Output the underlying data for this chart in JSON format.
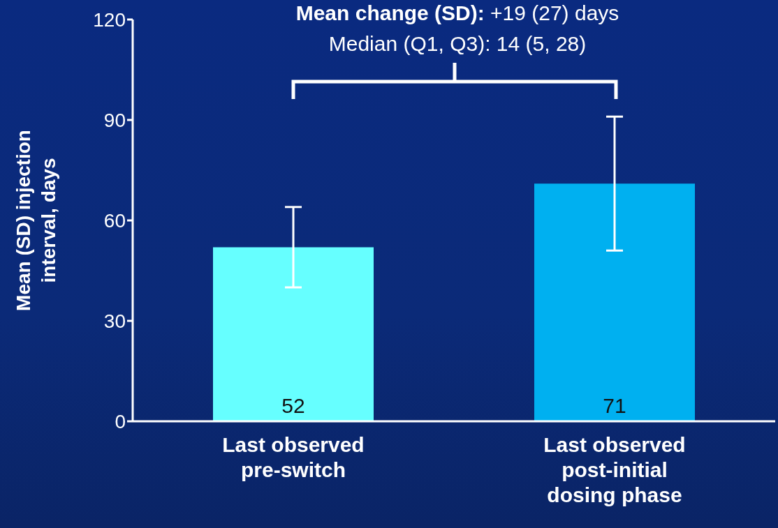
{
  "chart_data": {
    "type": "bar",
    "ylabel": "Mean (SD) injection interval, days",
    "categories": [
      "Last observed pre-switch",
      "Last observed post-initial dosing phase"
    ],
    "values": [
      52,
      71
    ],
    "colors": [
      "#66ffff",
      "#00b0f0"
    ],
    "errors": [
      12,
      20
    ],
    "ylim": [
      0,
      120
    ],
    "yticks": [
      0,
      30,
      60,
      90,
      120
    ],
    "data_labels": true,
    "annotations": [
      "Mean change (SD): +19 (27) days",
      "Median (Q1, Q3): 14 (5, 28)"
    ]
  }
}
